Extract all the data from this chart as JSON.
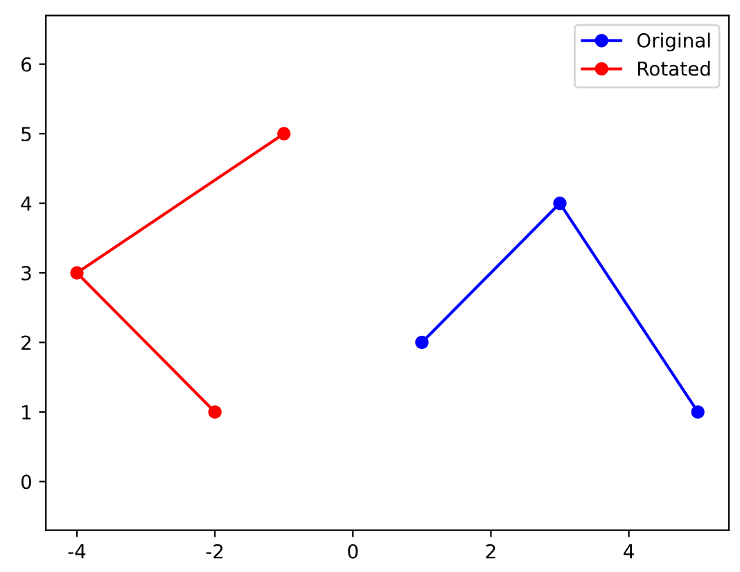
{
  "chart_data": {
    "type": "line",
    "marker": "circle",
    "line_style": "solid",
    "legend": "top right",
    "grid": false,
    "xlim": [
      -4.45,
      5.45
    ],
    "xticks": [
      -4,
      -2,
      0,
      2,
      4
    ],
    "ylim": [
      -0.7,
      6.7
    ],
    "yticks": [
      0,
      1,
      2,
      3,
      4,
      5,
      6
    ],
    "series": [
      {
        "name": "Original",
        "color": "#0000ff",
        "x": [
          1,
          3,
          5
        ],
        "values": [
          2,
          4,
          1
        ]
      },
      {
        "name": "Rotated",
        "color": "#ff0000",
        "x": [
          -2,
          -4,
          -1
        ],
        "values": [
          1,
          3,
          5
        ]
      }
    ]
  }
}
